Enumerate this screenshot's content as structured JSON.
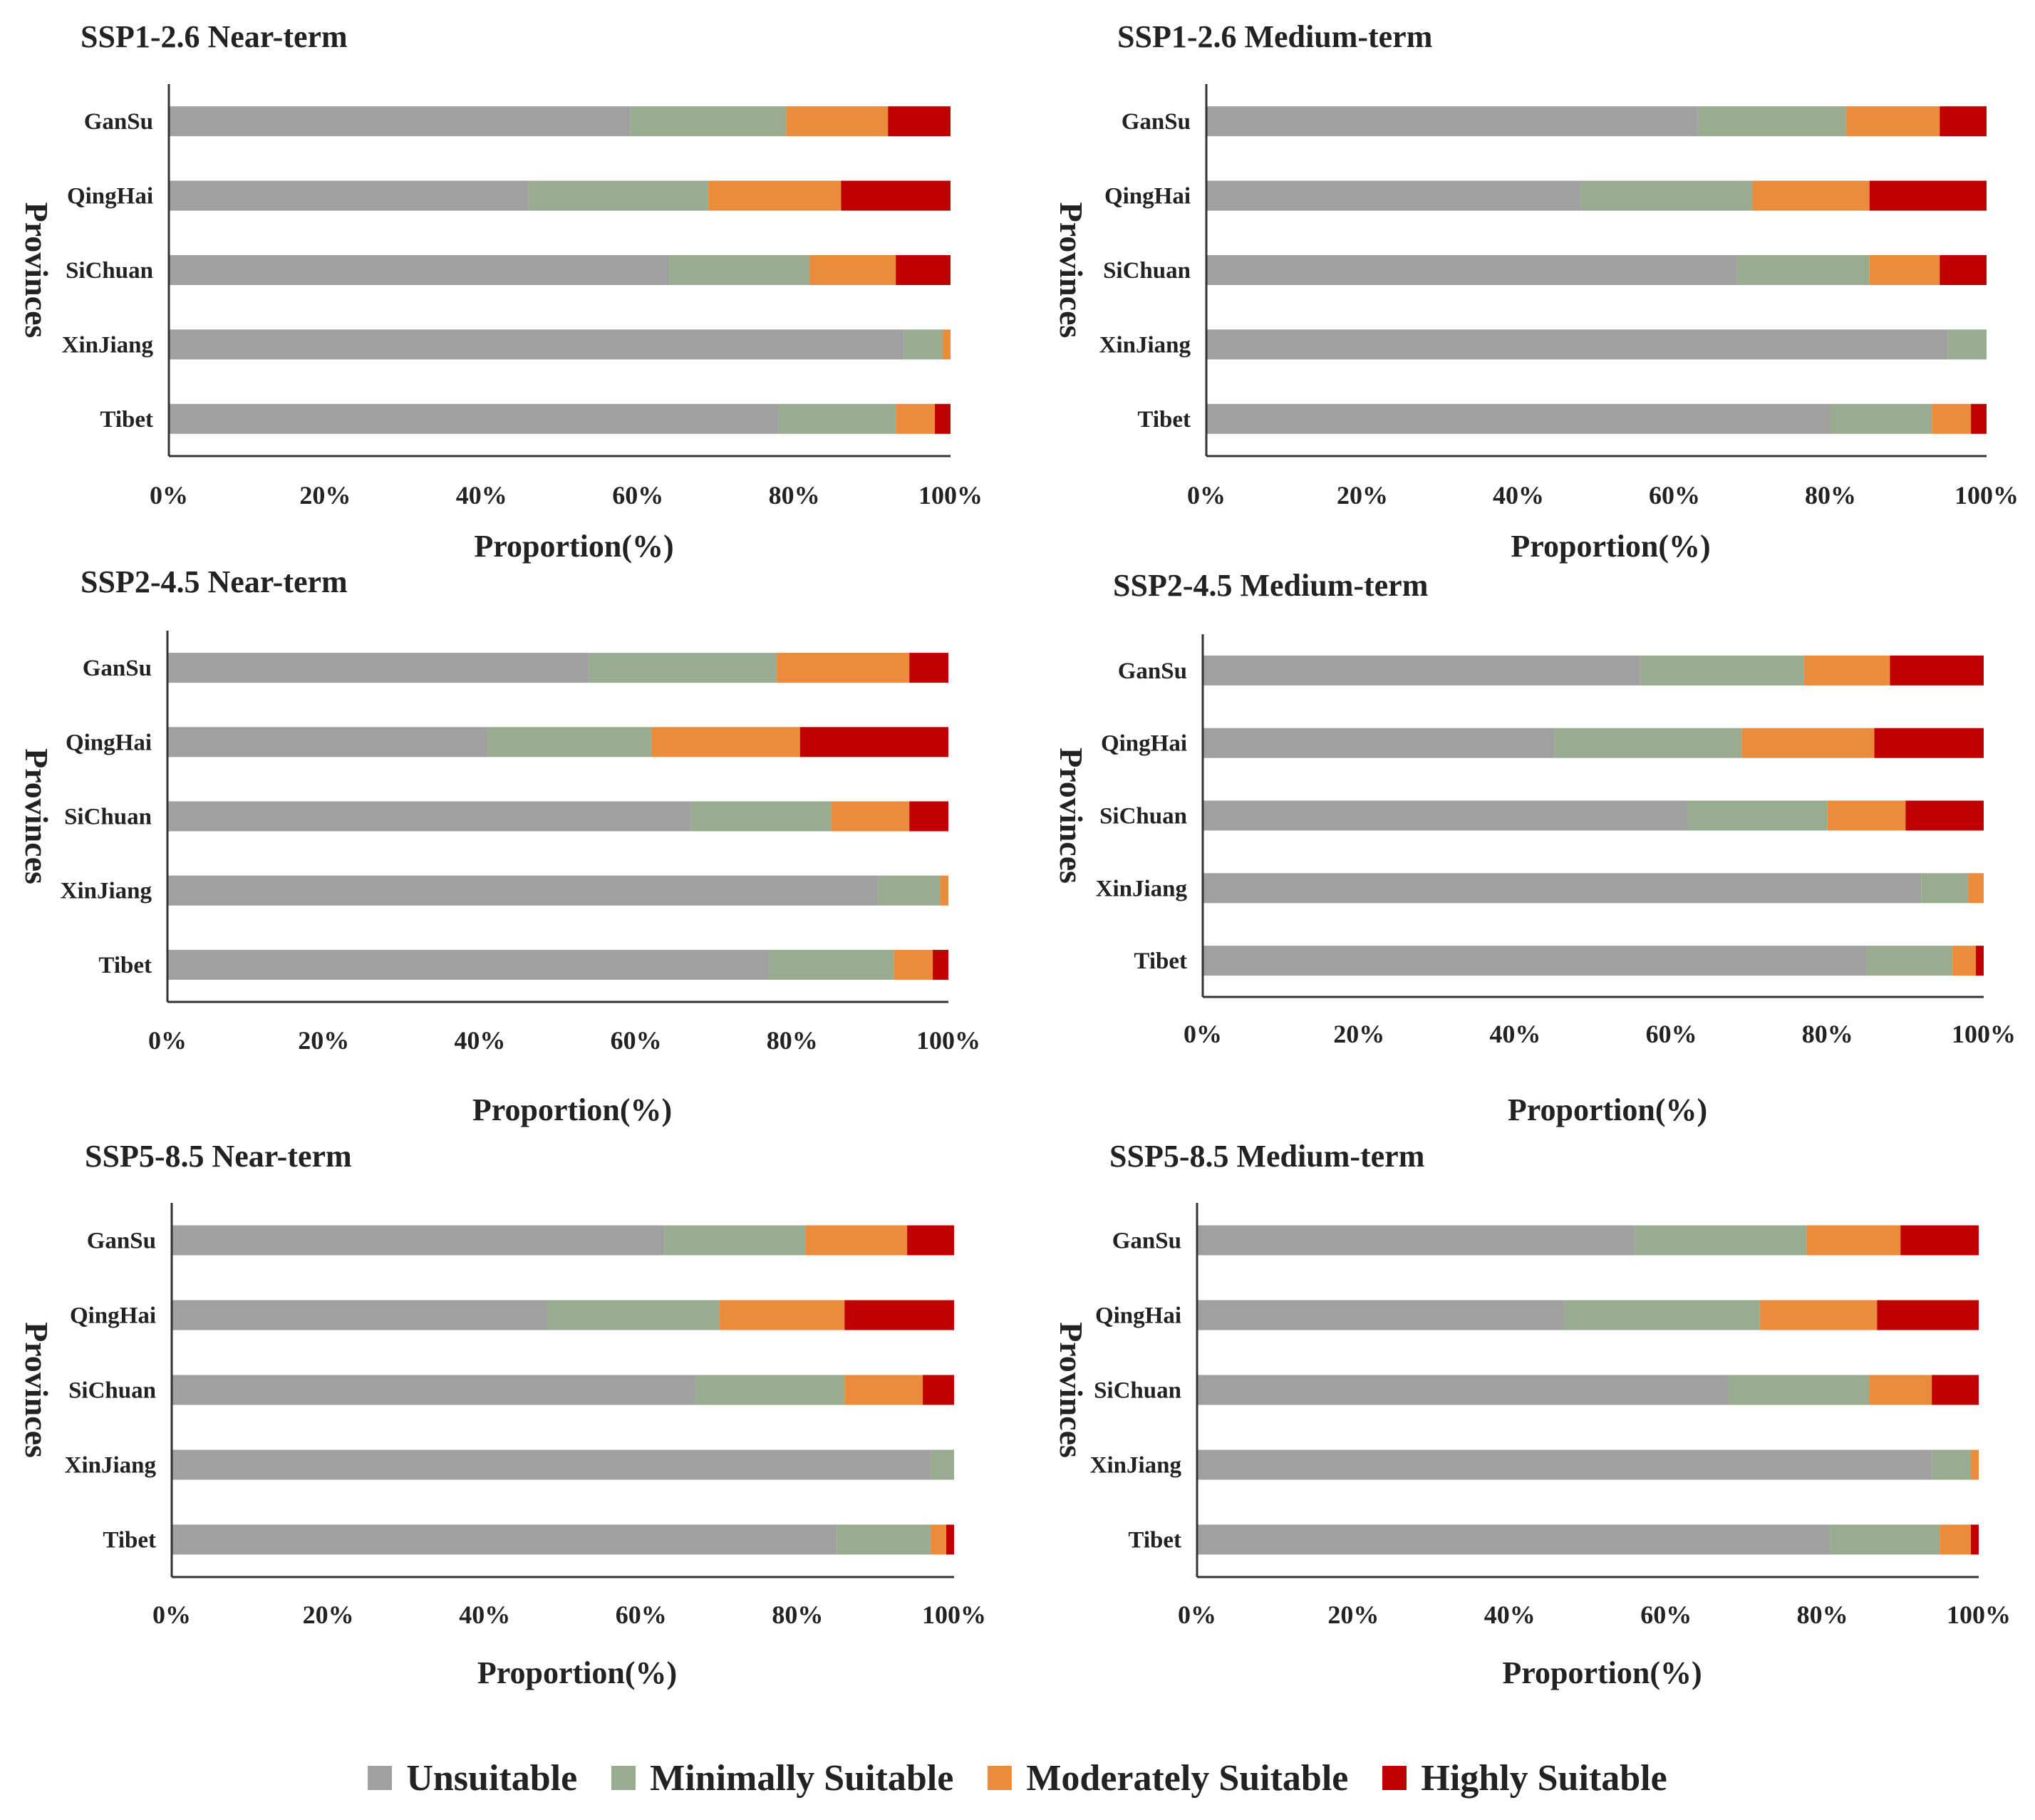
{
  "figure": {
    "legend": [
      {
        "label": "Unsuitable",
        "color": "#a0a0a0"
      },
      {
        "label": "Minimally Suitable",
        "color": "#99ac90"
      },
      {
        "label": "Moderately Suitable",
        "color": "#ea8c3c"
      },
      {
        "label": "Highly Suitable",
        "color": "#c00000"
      }
    ]
  },
  "chart_data": [
    {
      "type": "bar",
      "orientation": "horizontal-stacked",
      "title": "SSP1-2.6 Near-term",
      "xlabel": "Proportion(%)",
      "ylabel": "Provinces",
      "xlim": [
        0,
        100
      ],
      "xticks": [
        "0%",
        "20%",
        "40%",
        "60%",
        "80%",
        "100%"
      ],
      "categories": [
        "GanSu",
        "QingHai",
        "SiChuan",
        "XinJiang",
        "Tibet"
      ],
      "series": [
        {
          "name": "Unsuitable",
          "values": [
            59,
            46,
            64,
            94,
            78
          ]
        },
        {
          "name": "Minimally Suitable",
          "values": [
            20,
            23,
            18,
            5,
            15
          ]
        },
        {
          "name": "Moderately Suitable",
          "values": [
            13,
            17,
            11,
            1,
            5
          ]
        },
        {
          "name": "Highly Suitable",
          "values": [
            8,
            14,
            7,
            0,
            2
          ]
        }
      ]
    },
    {
      "type": "bar",
      "orientation": "horizontal-stacked",
      "title": "SSP1-2.6 Medium-term",
      "xlabel": "Proportion(%)",
      "ylabel": "Provinces",
      "xlim": [
        0,
        100
      ],
      "xticks": [
        "0%",
        "20%",
        "40%",
        "60%",
        "80%",
        "100%"
      ],
      "categories": [
        "GanSu",
        "QingHai",
        "SiChuan",
        "XinJiang",
        "Tibet"
      ],
      "series": [
        {
          "name": "Unsuitable",
          "values": [
            63,
            48,
            68,
            95,
            80
          ]
        },
        {
          "name": "Minimally Suitable",
          "values": [
            19,
            22,
            17,
            5,
            13
          ]
        },
        {
          "name": "Moderately Suitable",
          "values": [
            12,
            15,
            9,
            0,
            5
          ]
        },
        {
          "name": "Highly Suitable",
          "values": [
            6,
            15,
            6,
            0,
            2
          ]
        }
      ]
    },
    {
      "type": "bar",
      "orientation": "horizontal-stacked",
      "title": "SSP2-4.5 Near-term",
      "xlabel": "Proportion(%)",
      "ylabel": "Provinces",
      "xlim": [
        0,
        100
      ],
      "xticks": [
        "0%",
        "20%",
        "40%",
        "60%",
        "80%",
        "100%"
      ],
      "categories": [
        "GanSu",
        "QingHai",
        "SiChuan",
        "XinJiang",
        "Tibet"
      ],
      "series": [
        {
          "name": "Unsuitable",
          "values": [
            54,
            41,
            67,
            91,
            77
          ]
        },
        {
          "name": "Minimally Suitable",
          "values": [
            24,
            21,
            18,
            8,
            16
          ]
        },
        {
          "name": "Moderately Suitable",
          "values": [
            17,
            19,
            10,
            1,
            5
          ]
        },
        {
          "name": "Highly Suitable",
          "values": [
            5,
            19,
            5,
            0,
            2
          ]
        }
      ]
    },
    {
      "type": "bar",
      "orientation": "horizontal-stacked",
      "title": "SSP2-4.5 Medium-term",
      "xlabel": "Proportion(%)",
      "ylabel": "Provinces",
      "xlim": [
        0,
        100
      ],
      "xticks": [
        "0%",
        "20%",
        "40%",
        "60%",
        "80%",
        "100%"
      ],
      "categories": [
        "GanSu",
        "QingHai",
        "SiChuan",
        "XinJiang",
        "Tibet"
      ],
      "series": [
        {
          "name": "Unsuitable",
          "values": [
            56,
            45,
            62,
            92,
            85
          ]
        },
        {
          "name": "Minimally Suitable",
          "values": [
            21,
            24,
            18,
            6,
            11
          ]
        },
        {
          "name": "Moderately Suitable",
          "values": [
            11,
            17,
            10,
            2,
            3
          ]
        },
        {
          "name": "Highly Suitable",
          "values": [
            12,
            14,
            10,
            0,
            1
          ]
        }
      ]
    },
    {
      "type": "bar",
      "orientation": "horizontal-stacked",
      "title": "SSP5-8.5 Near-term",
      "xlabel": "Proportion(%)",
      "ylabel": "Provinces",
      "xlim": [
        0,
        100
      ],
      "xticks": [
        "0%",
        "20%",
        "40%",
        "60%",
        "80%",
        "100%"
      ],
      "categories": [
        "GanSu",
        "QingHai",
        "SiChuan",
        "XinJiang",
        "Tibet"
      ],
      "series": [
        {
          "name": "Unsuitable",
          "values": [
            63,
            48,
            67,
            97,
            85
          ]
        },
        {
          "name": "Minimally Suitable",
          "values": [
            18,
            22,
            19,
            3,
            12
          ]
        },
        {
          "name": "Moderately Suitable",
          "values": [
            13,
            16,
            10,
            0,
            2
          ]
        },
        {
          "name": "Highly Suitable",
          "values": [
            6,
            14,
            4,
            0,
            1
          ]
        }
      ]
    },
    {
      "type": "bar",
      "orientation": "horizontal-stacked",
      "title": "SSP5-8.5 Medium-term",
      "xlabel": "Proportion(%)",
      "ylabel": "Provinces",
      "xlim": [
        0,
        100
      ],
      "xticks": [
        "0%",
        "20%",
        "40%",
        "60%",
        "80%",
        "100%"
      ],
      "categories": [
        "GanSu",
        "QingHai",
        "SiChuan",
        "XinJiang",
        "Tibet"
      ],
      "series": [
        {
          "name": "Unsuitable",
          "values": [
            56,
            47,
            68,
            94,
            81
          ]
        },
        {
          "name": "Minimally Suitable",
          "values": [
            22,
            25,
            18,
            5,
            14
          ]
        },
        {
          "name": "Moderately Suitable",
          "values": [
            12,
            15,
            8,
            1,
            4
          ]
        },
        {
          "name": "Highly Suitable",
          "values": [
            10,
            13,
            6,
            0,
            1
          ]
        }
      ]
    }
  ]
}
